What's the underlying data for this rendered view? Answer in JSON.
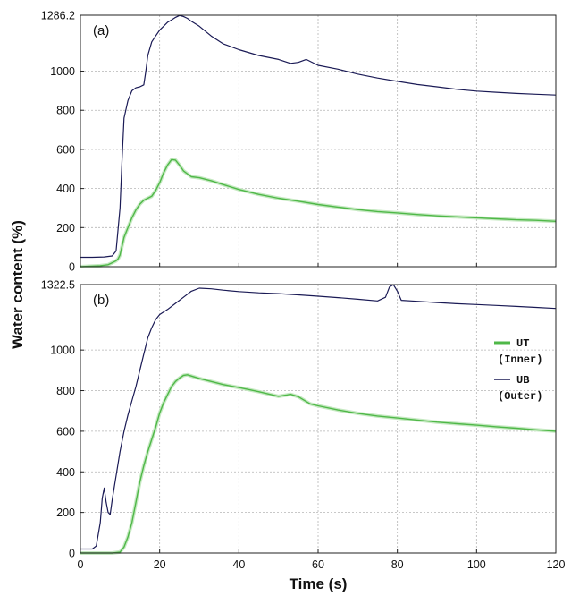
{
  "chart_data": [
    {
      "type": "line",
      "panel_label": "(a)",
      "xlim": [
        0,
        120
      ],
      "ylim": [
        0,
        1286.2
      ],
      "x_ticks": [
        0,
        20,
        40,
        60,
        80,
        100,
        120
      ],
      "y_ticks": [
        0,
        200,
        400,
        600,
        800,
        1000,
        1286.2
      ],
      "grid": true,
      "series": [
        {
          "name": "UB",
          "color": "#1a1a55",
          "points": [
            [
              0,
              48
            ],
            [
              3,
              48
            ],
            [
              6,
              50
            ],
            [
              8,
              55
            ],
            [
              9,
              80
            ],
            [
              10,
              300
            ],
            [
              10.5,
              550
            ],
            [
              11,
              760
            ],
            [
              12,
              850
            ],
            [
              13,
              900
            ],
            [
              14,
              915
            ],
            [
              15,
              920
            ],
            [
              16,
              930
            ],
            [
              16.5,
              1000
            ],
            [
              17,
              1080
            ],
            [
              18,
              1150
            ],
            [
              19,
              1180
            ],
            [
              20,
              1210
            ],
            [
              21,
              1230
            ],
            [
              22,
              1250
            ],
            [
              23,
              1262
            ],
            [
              24,
              1275
            ],
            [
              25,
              1285
            ],
            [
              26,
              1280
            ],
            [
              27,
              1270
            ],
            [
              28,
              1255
            ],
            [
              30,
              1230
            ],
            [
              33,
              1180
            ],
            [
              36,
              1140
            ],
            [
              40,
              1110
            ],
            [
              45,
              1080
            ],
            [
              50,
              1060
            ],
            [
              53,
              1040
            ],
            [
              55,
              1045
            ],
            [
              57,
              1060
            ],
            [
              60,
              1030
            ],
            [
              65,
              1010
            ],
            [
              70,
              985
            ],
            [
              75,
              965
            ],
            [
              80,
              948
            ],
            [
              85,
              932
            ],
            [
              90,
              920
            ],
            [
              95,
              907
            ],
            [
              100,
              898
            ],
            [
              105,
              892
            ],
            [
              110,
              886
            ],
            [
              115,
              882
            ],
            [
              120,
              878
            ]
          ]
        },
        {
          "name": "UT",
          "color": "#4fb848",
          "points": [
            [
              0,
              0
            ],
            [
              5,
              5
            ],
            [
              7,
              10
            ],
            [
              8,
              20
            ],
            [
              9,
              30
            ],
            [
              9.5,
              40
            ],
            [
              10,
              60
            ],
            [
              11,
              150
            ],
            [
              12,
              200
            ],
            [
              13,
              250
            ],
            [
              14,
              290
            ],
            [
              15,
              320
            ],
            [
              16,
              340
            ],
            [
              17,
              350
            ],
            [
              18,
              360
            ],
            [
              19,
              390
            ],
            [
              20,
              430
            ],
            [
              21,
              480
            ],
            [
              22,
              520
            ],
            [
              23,
              548
            ],
            [
              24,
              545
            ],
            [
              25,
              520
            ],
            [
              26,
              490
            ],
            [
              28,
              460
            ],
            [
              30,
              455
            ],
            [
              33,
              440
            ],
            [
              36,
              420
            ],
            [
              40,
              395
            ],
            [
              45,
              370
            ],
            [
              50,
              350
            ],
            [
              55,
              335
            ],
            [
              60,
              318
            ],
            [
              65,
              305
            ],
            [
              70,
              292
            ],
            [
              75,
              282
            ],
            [
              80,
              275
            ],
            [
              85,
              267
            ],
            [
              90,
              260
            ],
            [
              95,
              255
            ],
            [
              100,
              250
            ],
            [
              105,
              245
            ],
            [
              110,
              240
            ],
            [
              115,
              237
            ],
            [
              120,
              232
            ]
          ]
        }
      ]
    },
    {
      "type": "line",
      "panel_label": "(b)",
      "xlim": [
        0,
        120
      ],
      "ylim": [
        0,
        1322.5
      ],
      "x_ticks": [
        0,
        20,
        40,
        60,
        80,
        100,
        120
      ],
      "y_ticks": [
        0,
        200,
        400,
        600,
        800,
        1000,
        1322.5
      ],
      "grid": true,
      "xlabel": "Time (s)",
      "legend_position": "right",
      "series": [
        {
          "name": "UT (Inner)",
          "color": "#4fb848",
          "points": [
            [
              0,
              0
            ],
            [
              8,
              0
            ],
            [
              10,
              5
            ],
            [
              11,
              30
            ],
            [
              12,
              80
            ],
            [
              13,
              150
            ],
            [
              14,
              250
            ],
            [
              15,
              350
            ],
            [
              16,
              430
            ],
            [
              17,
              500
            ],
            [
              18,
              560
            ],
            [
              19,
              620
            ],
            [
              20,
              690
            ],
            [
              21,
              740
            ],
            [
              22,
              780
            ],
            [
              23,
              820
            ],
            [
              24,
              845
            ],
            [
              25,
              862
            ],
            [
              26,
              875
            ],
            [
              27,
              878
            ],
            [
              28,
              872
            ],
            [
              30,
              860
            ],
            [
              33,
              845
            ],
            [
              36,
              830
            ],
            [
              40,
              815
            ],
            [
              45,
              795
            ],
            [
              50,
              772
            ],
            [
              52,
              778
            ],
            [
              53,
              782
            ],
            [
              55,
              770
            ],
            [
              58,
              735
            ],
            [
              60,
              725
            ],
            [
              65,
              705
            ],
            [
              70,
              688
            ],
            [
              75,
              675
            ],
            [
              80,
              665
            ],
            [
              85,
              655
            ],
            [
              90,
              645
            ],
            [
              95,
              637
            ],
            [
              100,
              630
            ],
            [
              105,
              622
            ],
            [
              110,
              615
            ],
            [
              115,
              607
            ],
            [
              120,
              600
            ]
          ]
        },
        {
          "name": "UB (Outer)",
          "color": "#1a1a55",
          "points": [
            [
              0,
              20
            ],
            [
              3,
              20
            ],
            [
              4,
              35
            ],
            [
              5,
              150
            ],
            [
              5.5,
              270
            ],
            [
              6,
              320
            ],
            [
              6.5,
              250
            ],
            [
              7,
              200
            ],
            [
              7.5,
              190
            ],
            [
              8,
              260
            ],
            [
              9,
              380
            ],
            [
              10,
              500
            ],
            [
              11,
              600
            ],
            [
              12,
              680
            ],
            [
              13,
              750
            ],
            [
              14,
              820
            ],
            [
              15,
              900
            ],
            [
              16,
              980
            ],
            [
              17,
              1060
            ],
            [
              18,
              1110
            ],
            [
              19,
              1150
            ],
            [
              20,
              1175
            ],
            [
              22,
              1200
            ],
            [
              24,
              1230
            ],
            [
              26,
              1260
            ],
            [
              28,
              1290
            ],
            [
              30,
              1305
            ],
            [
              33,
              1302
            ],
            [
              36,
              1295
            ],
            [
              40,
              1288
            ],
            [
              45,
              1282
            ],
            [
              50,
              1278
            ],
            [
              55,
              1272
            ],
            [
              60,
              1265
            ],
            [
              65,
              1258
            ],
            [
              70,
              1250
            ],
            [
              75,
              1242
            ],
            [
              77,
              1260
            ],
            [
              78,
              1310
            ],
            [
              79,
              1322
            ],
            [
              80,
              1290
            ],
            [
              81,
              1245
            ],
            [
              85,
              1240
            ],
            [
              90,
              1234
            ],
            [
              95,
              1228
            ],
            [
              100,
              1224
            ],
            [
              105,
              1220
            ],
            [
              110,
              1215
            ],
            [
              115,
              1210
            ],
            [
              120,
              1205
            ]
          ]
        }
      ]
    }
  ],
  "ylabel": "Water content (%)",
  "legend": [
    {
      "line1": "UT",
      "line2": "(Inner)",
      "color": "#4fb848"
    },
    {
      "line1": "UB",
      "line2": "(Outer)",
      "color": "#1a1a55"
    }
  ]
}
